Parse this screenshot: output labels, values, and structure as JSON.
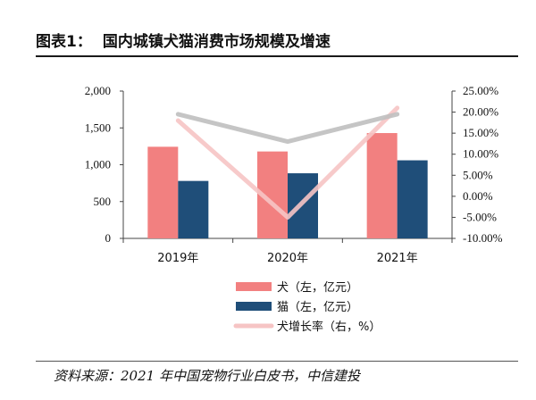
{
  "header": {
    "figure_label": "图表1：",
    "figure_title": "国内城镇犬猫消费市场规模及增速"
  },
  "source": "资料来源：2021 年中国宠物行业白皮书，中信建投",
  "chart_data": {
    "type": "bar",
    "categories": [
      "2019年",
      "2020年",
      "2021年"
    ],
    "series": [
      {
        "name": "犬（左，亿元）",
        "kind": "bar",
        "axis": "left",
        "color": "#f28080",
        "values": [
          1244,
          1180,
          1430
        ]
      },
      {
        "name": "猫（左，亿元）",
        "kind": "bar",
        "axis": "left",
        "color": "#1f4e79",
        "values": [
          780,
          884,
          1060
        ]
      },
      {
        "name": "犬增长率（右，%）",
        "kind": "line",
        "axis": "right",
        "color": "#f6c4c4",
        "values": [
          18.0,
          -5.0,
          21.0
        ]
      },
      {
        "name": "",
        "kind": "line",
        "axis": "right",
        "color": "#bfbfbf",
        "values": [
          19.5,
          13.0,
          19.5
        ]
      }
    ],
    "left_axis": {
      "ylim": [
        0,
        2000
      ],
      "ticks": [
        0,
        500,
        1000,
        1500,
        2000
      ],
      "tick_labels": [
        "0",
        "500",
        "1,000",
        "1,500",
        "2,000"
      ]
    },
    "right_axis": {
      "ylim": [
        -10,
        25
      ],
      "ticks": [
        -10,
        -5,
        0,
        5,
        10,
        15,
        20,
        25
      ],
      "tick_labels": [
        "-10.00%",
        "-5.00%",
        "0.00%",
        "5.00%",
        "10.00%",
        "15.00%",
        "20.00%",
        "25.00%"
      ]
    },
    "grid": false,
    "legend_position": "bottom"
  }
}
